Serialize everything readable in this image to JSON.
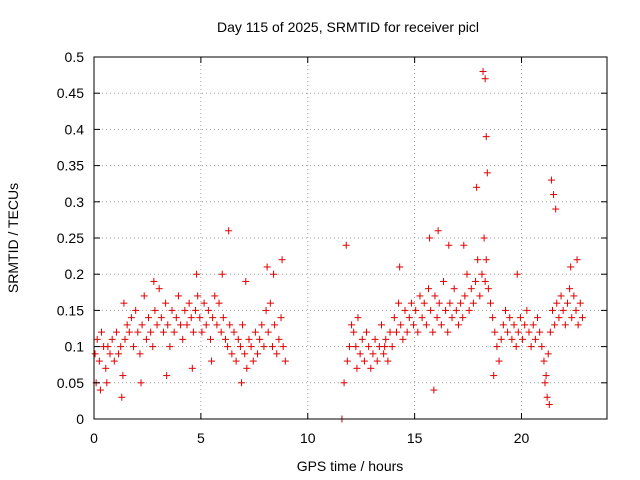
{
  "chart_data": {
    "type": "scatter",
    "title": "Day 115 of 2025, SRMTID for receiver picl",
    "xlabel": "GPS time / hours",
    "ylabel": "SRMTID / TECUs",
    "xlim": [
      0,
      24
    ],
    "ylim": [
      0,
      0.5
    ],
    "xticks": [
      0,
      5,
      10,
      15,
      20
    ],
    "yticks": [
      0,
      0.05,
      0.1,
      0.15,
      0.2,
      0.25,
      0.3,
      0.35,
      0.4,
      0.45,
      0.5
    ],
    "xtick_labels": [
      "0",
      "5",
      "10",
      "15",
      "20"
    ],
    "ytick_labels": [
      "0",
      "0.05",
      "0.1",
      "0.15",
      "0.2",
      "0.25",
      "0.3",
      "0.35",
      "0.4",
      "0.45",
      "0.5"
    ],
    "grid": true,
    "marker": "+",
    "color": "#e00000",
    "series": [
      {
        "name": "SRMTID",
        "x": [
          0.05,
          0.15,
          0.25,
          0.35,
          0.45,
          0.55,
          0.65,
          0.75,
          0.85,
          0.95,
          1.05,
          1.15,
          1.25,
          1.35,
          1.45,
          1.55,
          1.65,
          1.75,
          1.85,
          1.95,
          2.05,
          2.15,
          2.25,
          2.35,
          2.45,
          2.55,
          2.65,
          2.75,
          2.85,
          2.95,
          3.05,
          3.15,
          3.25,
          3.35,
          3.45,
          3.55,
          3.65,
          3.75,
          3.85,
          3.95,
          4.05,
          4.15,
          4.25,
          4.35,
          4.45,
          4.55,
          4.65,
          4.75,
          4.85,
          4.95,
          5.05,
          5.15,
          5.25,
          5.35,
          5.45,
          5.55,
          5.65,
          5.75,
          5.85,
          5.95,
          6.05,
          6.15,
          6.25,
          6.35,
          6.45,
          6.55,
          6.65,
          6.75,
          6.85,
          6.95,
          7.05,
          7.15,
          7.25,
          7.35,
          7.45,
          7.55,
          7.65,
          7.75,
          7.85,
          7.95,
          8.05,
          8.15,
          8.25,
          8.35,
          8.45,
          8.55,
          8.65,
          8.75,
          8.85,
          8.95,
          0.1,
          0.6,
          1.3,
          2.2,
          3.4,
          4.6,
          5.5,
          6.0,
          6.3,
          7.1,
          8.4,
          8.8,
          0.3,
          1.4,
          2.8,
          4.8,
          6.9,
          8.1,
          11.6,
          11.7,
          11.85,
          11.95,
          12.05,
          12.15,
          12.25,
          12.35,
          12.45,
          12.55,
          12.65,
          12.75,
          12.85,
          12.95,
          13.05,
          13.15,
          13.25,
          13.35,
          13.45,
          13.55,
          13.65,
          13.75,
          13.85,
          13.95,
          14.05,
          14.15,
          14.25,
          14.35,
          14.45,
          14.55,
          14.65,
          14.75,
          14.85,
          14.95,
          15.05,
          15.15,
          15.25,
          15.35,
          15.45,
          15.55,
          15.65,
          15.75,
          15.85,
          15.95,
          16.05,
          16.15,
          16.25,
          16.35,
          16.45,
          16.55,
          16.65,
          16.75,
          16.85,
          16.95,
          17.05,
          17.15,
          17.25,
          17.35,
          17.45,
          17.55,
          17.65,
          17.75,
          17.85,
          17.95,
          18.05,
          18.15,
          18.25,
          18.3,
          18.35,
          18.45,
          18.55,
          18.65,
          18.75,
          18.85,
          18.95,
          19.05,
          19.15,
          19.25,
          19.35,
          19.45,
          19.55,
          19.65,
          19.75,
          19.85,
          19.95,
          20.05,
          20.15,
          20.25,
          20.35,
          20.45,
          20.55,
          20.65,
          20.75,
          20.85,
          20.95,
          21.05,
          21.15,
          21.25,
          21.35,
          21.45,
          21.55,
          21.65,
          21.75,
          21.85,
          21.95,
          22.05,
          22.15,
          22.25,
          22.35,
          22.45,
          22.55,
          22.65,
          22.75,
          22.85,
          11.8,
          12.3,
          13.6,
          14.3,
          15.7,
          16.1,
          16.6,
          17.3,
          17.9,
          18.2,
          18.3,
          18.35,
          18.4,
          19.8,
          21.4,
          21.5,
          21.6,
          22.3,
          22.6,
          21.1,
          21.2,
          21.3,
          18.7,
          15.9
        ],
        "y": [
          0.09,
          0.11,
          0.08,
          0.12,
          0.1,
          0.07,
          0.1,
          0.09,
          0.11,
          0.08,
          0.12,
          0.09,
          0.1,
          0.06,
          0.11,
          0.13,
          0.12,
          0.14,
          0.1,
          0.15,
          0.12,
          0.09,
          0.13,
          0.17,
          0.11,
          0.14,
          0.12,
          0.1,
          0.15,
          0.13,
          0.18,
          0.14,
          0.12,
          0.16,
          0.13,
          0.1,
          0.15,
          0.12,
          0.14,
          0.17,
          0.13,
          0.11,
          0.15,
          0.13,
          0.16,
          0.14,
          0.12,
          0.15,
          0.17,
          0.14,
          0.12,
          0.16,
          0.13,
          0.15,
          0.11,
          0.14,
          0.17,
          0.13,
          0.16,
          0.12,
          0.14,
          0.11,
          0.1,
          0.13,
          0.09,
          0.12,
          0.08,
          0.11,
          0.1,
          0.13,
          0.09,
          0.07,
          0.11,
          0.1,
          0.08,
          0.12,
          0.09,
          0.11,
          0.13,
          0.1,
          0.15,
          0.12,
          0.16,
          0.1,
          0.13,
          0.09,
          0.11,
          0.14,
          0.1,
          0.08,
          0.05,
          0.05,
          0.03,
          0.05,
          0.06,
          0.07,
          0.08,
          0.2,
          0.26,
          0.19,
          0.2,
          0.22,
          0.04,
          0.16,
          0.19,
          0.2,
          0.05,
          0.21,
          0.0,
          0.05,
          0.08,
          0.1,
          0.13,
          0.12,
          0.1,
          0.14,
          0.09,
          0.11,
          0.08,
          0.12,
          0.1,
          0.07,
          0.09,
          0.11,
          0.08,
          0.1,
          0.13,
          0.09,
          0.11,
          0.08,
          0.12,
          0.1,
          0.14,
          0.12,
          0.16,
          0.13,
          0.11,
          0.15,
          0.12,
          0.14,
          0.16,
          0.13,
          0.15,
          0.12,
          0.17,
          0.14,
          0.16,
          0.13,
          0.18,
          0.15,
          0.12,
          0.17,
          0.14,
          0.16,
          0.13,
          0.19,
          0.15,
          0.12,
          0.16,
          0.14,
          0.18,
          0.15,
          0.13,
          0.16,
          0.14,
          0.17,
          0.2,
          0.15,
          0.18,
          0.16,
          0.19,
          0.22,
          0.17,
          0.2,
          0.25,
          0.19,
          0.22,
          0.18,
          0.16,
          0.14,
          0.12,
          0.1,
          0.08,
          0.11,
          0.13,
          0.15,
          0.12,
          0.14,
          0.11,
          0.13,
          0.1,
          0.12,
          0.14,
          0.11,
          0.13,
          0.15,
          0.12,
          0.1,
          0.13,
          0.11,
          0.14,
          0.12,
          0.1,
          0.08,
          0.06,
          0.09,
          0.12,
          0.15,
          0.13,
          0.16,
          0.14,
          0.17,
          0.15,
          0.13,
          0.16,
          0.18,
          0.14,
          0.17,
          0.15,
          0.13,
          0.16,
          0.14,
          0.24,
          0.07,
          0.1,
          0.21,
          0.25,
          0.26,
          0.24,
          0.24,
          0.32,
          0.48,
          0.47,
          0.39,
          0.34,
          0.2,
          0.33,
          0.31,
          0.29,
          0.21,
          0.22,
          0.05,
          0.03,
          0.02,
          0.06,
          0.04
        ]
      }
    ]
  }
}
